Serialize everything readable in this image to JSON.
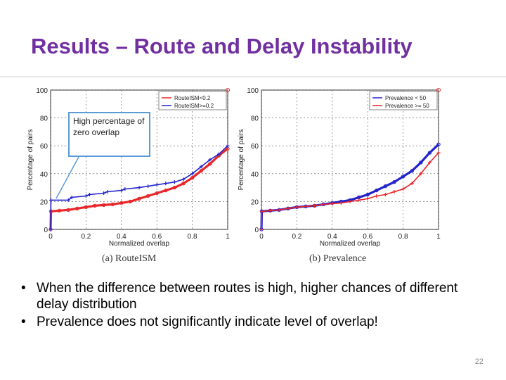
{
  "slide": {
    "title": "Results – Route and Delay Instability",
    "callout": "High percentage of zero overlap",
    "bullets": [
      "When the difference between routes is high, higher chances of different delay distribution",
      "Prevalence does not significantly indicate level of overlap!"
    ],
    "page_number": "22"
  },
  "chart_data": [
    {
      "type": "line",
      "caption": "(a) RouteISM",
      "xlabel": "Normalized overlap",
      "ylabel": "Percentage of pairs",
      "xlim": [
        0,
        1
      ],
      "ylim": [
        0,
        100
      ],
      "xticks": [
        "0",
        "0.2",
        "0.4",
        "0.6",
        "0.8",
        "1"
      ],
      "yticks": [
        "0",
        "20",
        "40",
        "60",
        "80",
        "100"
      ],
      "grid": true,
      "legend_position": "top-right",
      "series": [
        {
          "name": "RouteISM<0.2",
          "color": "#e8262a",
          "marker": "o",
          "x": [
            0,
            0.002,
            0.05,
            0.1,
            0.15,
            0.2,
            0.25,
            0.3,
            0.35,
            0.4,
            0.45,
            0.5,
            0.55,
            0.6,
            0.65,
            0.7,
            0.75,
            0.8,
            0.85,
            0.9,
            0.95,
            1.0
          ],
          "y": [
            0,
            13,
            13.5,
            14,
            15,
            16,
            17,
            17.5,
            18,
            19,
            20,
            22,
            24,
            26,
            28,
            30,
            33,
            37,
            42,
            47,
            53,
            58
          ]
        },
        {
          "name": "RouteISM>=0.2",
          "color": "#2222cc",
          "marker": "*",
          "x": [
            0,
            0.002,
            0.1,
            0.12,
            0.2,
            0.22,
            0.3,
            0.32,
            0.4,
            0.42,
            0.5,
            0.55,
            0.6,
            0.65,
            0.7,
            0.75,
            0.8,
            0.85,
            0.9,
            0.95,
            1.0
          ],
          "y": [
            0,
            21,
            21,
            23,
            24,
            25,
            26,
            27,
            28,
            29,
            30,
            31,
            32,
            33,
            34,
            36,
            40,
            45,
            50,
            54,
            60
          ]
        }
      ],
      "annotations": [
        {
          "x": 1.0,
          "y": 100
        }
      ]
    },
    {
      "type": "line",
      "caption": "(b) Prevalence",
      "xlabel": "Normalized overlap",
      "ylabel": "Percentage of pairs",
      "xlim": [
        0,
        1
      ],
      "ylim": [
        0,
        100
      ],
      "xticks": [
        "0",
        "0.2",
        "0.4",
        "0.6",
        "0.8",
        "1"
      ],
      "yticks": [
        "0",
        "20",
        "40",
        "60",
        "80",
        "100"
      ],
      "grid": true,
      "legend_position": "top-right",
      "series": [
        {
          "name": "Prevalence < 50",
          "color": "#2222cc",
          "marker": "o",
          "x": [
            0,
            0.002,
            0.05,
            0.1,
            0.15,
            0.2,
            0.25,
            0.3,
            0.35,
            0.4,
            0.45,
            0.5,
            0.55,
            0.6,
            0.65,
            0.7,
            0.75,
            0.8,
            0.85,
            0.9,
            0.95,
            1.0
          ],
          "y": [
            0,
            13,
            13.5,
            14,
            15,
            16,
            16.5,
            17,
            18,
            19,
            20,
            21,
            23,
            25,
            28,
            31,
            34,
            38,
            42,
            48,
            55,
            61
          ]
        },
        {
          "name": "Prevalence >= 50",
          "color": "#e8262a",
          "marker": "*",
          "x": [
            0,
            0.002,
            0.05,
            0.1,
            0.15,
            0.2,
            0.25,
            0.3,
            0.35,
            0.4,
            0.45,
            0.5,
            0.55,
            0.6,
            0.65,
            0.7,
            0.75,
            0.8,
            0.85,
            0.9,
            0.95,
            1.0
          ],
          "y": [
            0,
            13,
            13.5,
            14,
            15,
            16,
            16.5,
            17,
            18,
            18.5,
            19,
            20,
            21,
            22,
            24,
            25,
            27,
            29,
            33,
            40,
            48,
            55
          ]
        }
      ],
      "annotations": [
        {
          "x": 1.0,
          "y": 100
        }
      ]
    }
  ]
}
